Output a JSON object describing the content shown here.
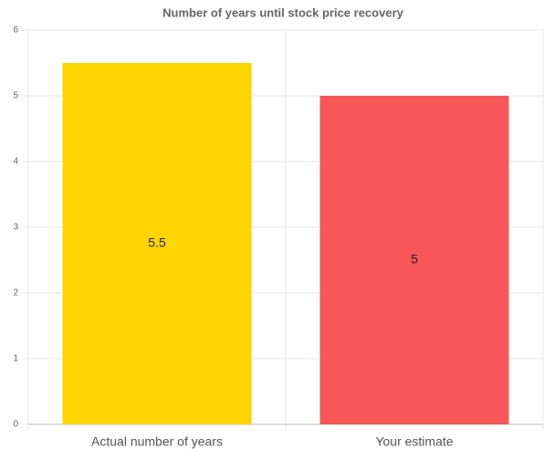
{
  "chart_data": {
    "type": "bar",
    "title": "Number of years until stock price recovery",
    "categories": [
      "Actual number of years",
      "Your estimate"
    ],
    "values": [
      5.5,
      5
    ],
    "colors": [
      "#ffd500",
      "#f75757"
    ],
    "ylim": [
      0,
      6
    ],
    "yticks": [
      0,
      1,
      2,
      3,
      4,
      5,
      6
    ],
    "grid": true
  }
}
